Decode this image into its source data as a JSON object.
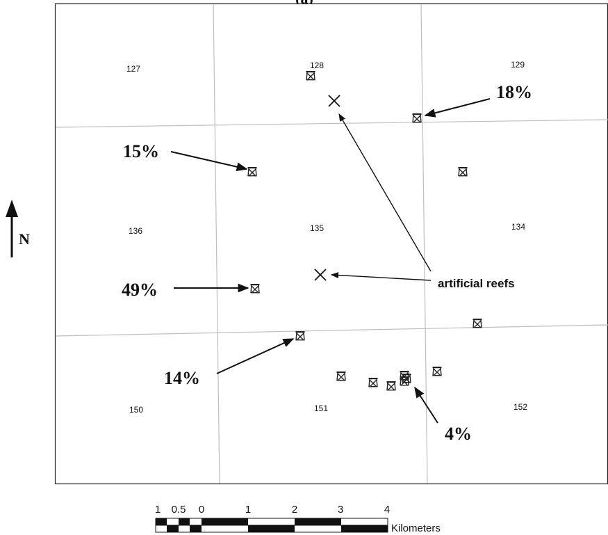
{
  "panel_label": "(a)",
  "north_label": "N",
  "blocks": [
    "127",
    "128",
    "129",
    "136",
    "135",
    "134",
    "150",
    "151",
    "152"
  ],
  "annotations": {
    "p18": "18%",
    "p15": "15%",
    "p49": "49%",
    "p14": "14%",
    "p4": "4%",
    "reefs": "artificial reefs"
  },
  "scale_bar": {
    "ticks": [
      "1",
      "0.5",
      "0",
      "1",
      "2",
      "3",
      "4"
    ],
    "unit": "Kilometers"
  },
  "platform_count": 14,
  "artificial_reef_count": 2
}
